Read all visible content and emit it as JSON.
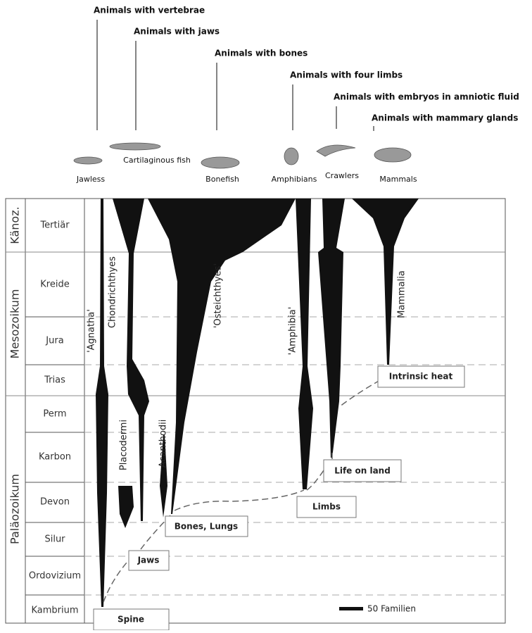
{
  "top_labels": [
    "Animals with vertebrae",
    "Animals with jaws",
    "Animals with bones",
    "Animals with four limbs",
    "Animals with embryos in amniotic fluid",
    "Animals with mammary glands"
  ],
  "animals": [
    "Jawless",
    "Cartilaginous fish",
    "Bonefish",
    "Amphibians",
    "Crawlers",
    "Mammals"
  ],
  "eras": [
    "Känoz.",
    "Mesozoikum",
    "Paläozoikum"
  ],
  "periods": [
    "Tertiär",
    "Kreide",
    "Jura",
    "Trias",
    "Perm",
    "Karbon",
    "Devon",
    "Silur",
    "Ordovizium",
    "Kambrium"
  ],
  "taxa": [
    "'Agnatha'",
    "Chondrichthyes",
    "Placodermi",
    "Acanthodii",
    "'Osteichthyes'",
    "'Amphibia'",
    "Mammalia"
  ],
  "events": [
    "Spine",
    "Jaws",
    "Bones, Lungs",
    "Limbs",
    "Life on land",
    "Intrinsic heat"
  ],
  "legend": "50 Familien"
}
